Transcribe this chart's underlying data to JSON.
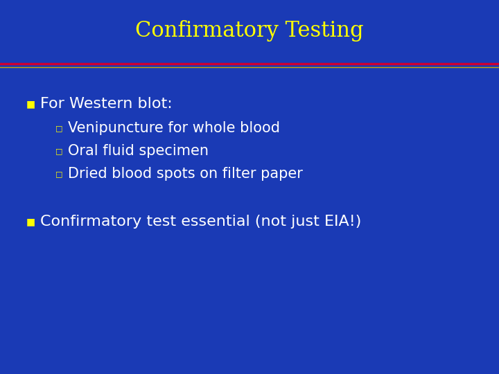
{
  "title": "Confirmatory Testing",
  "title_color": "#FFFF00",
  "title_fontsize": 22,
  "background_color": "#1A3AB5",
  "title_bg_color": "#1A3AB5",
  "divider_red": "#CC0033",
  "divider_gold": "#CCAA00",
  "bullet_marker": "■",
  "bullet_marker_color": "#FFFF00",
  "bullet1_text": "For Western blot:",
  "bullet_color": "#FFFFFF",
  "bullet_fontsize": 16,
  "subbullet_marker": "□",
  "subbullet_marker_color": "#FFFF00",
  "subbullets": [
    "Venipuncture for whole blood",
    "Oral fluid specimen",
    "Dried blood spots on filter paper"
  ],
  "subbullet_color": "#FFFFFF",
  "subbullet_fontsize": 15,
  "bullet2_text": "Confirmatory test essential (not just EIA!)",
  "bullet2_fontsize": 16
}
